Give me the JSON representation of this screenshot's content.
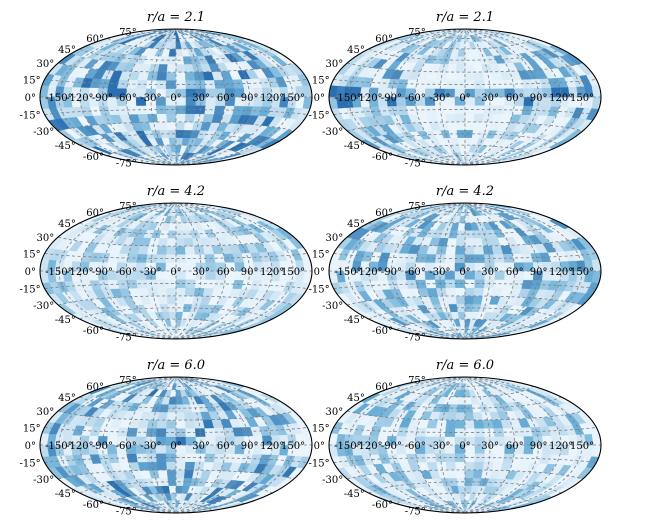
{
  "chart_data": {
    "type": "heatmap",
    "projection": "hammer",
    "layout": "3 rows x 2 columns",
    "colormap": "Blues",
    "colors": {
      "low": "#f7fbff",
      "mid": "#6baed6",
      "high": "#2c6fb0",
      "grid": "#7a8088",
      "frame": "#000000"
    },
    "grid": true,
    "longitude_ticks": [
      "-150°",
      "-120°",
      "-90°",
      "-60°",
      "-30°",
      "0°",
      "30°",
      "60°",
      "90°",
      "120°",
      "150°"
    ],
    "latitude_ticks": [
      "75°",
      "60°",
      "45°",
      "30°",
      "15°",
      "0°",
      "-15°",
      "-30°",
      "-45°",
      "-60°",
      "-75°"
    ],
    "longitude_values_deg": [
      -150,
      -120,
      -90,
      -60,
      -30,
      0,
      30,
      60,
      90,
      120,
      150
    ],
    "latitude_values_deg": [
      75,
      60,
      45,
      30,
      15,
      0,
      -15,
      -30,
      -45,
      -60,
      -75
    ],
    "panels": [
      {
        "title": "r/a = 2.1",
        "pattern": "uniform",
        "seed": 11,
        "density": 1.0
      },
      {
        "title": "r/a = 2.1",
        "pattern": "equatorial_band_with_clear_zones",
        "seed": 23,
        "density": 0.8
      },
      {
        "title": "r/a = 4.2",
        "pattern": "uniform_light",
        "seed": 37,
        "density": 0.6
      },
      {
        "title": "r/a = 4.2",
        "pattern": "uniform",
        "seed": 41,
        "density": 0.75
      },
      {
        "title": "r/a = 6.0",
        "pattern": "uniform",
        "seed": 53,
        "density": 0.95
      },
      {
        "title": "r/a = 6.0",
        "pattern": "uniform_light",
        "seed": 67,
        "density": 0.7
      }
    ]
  }
}
